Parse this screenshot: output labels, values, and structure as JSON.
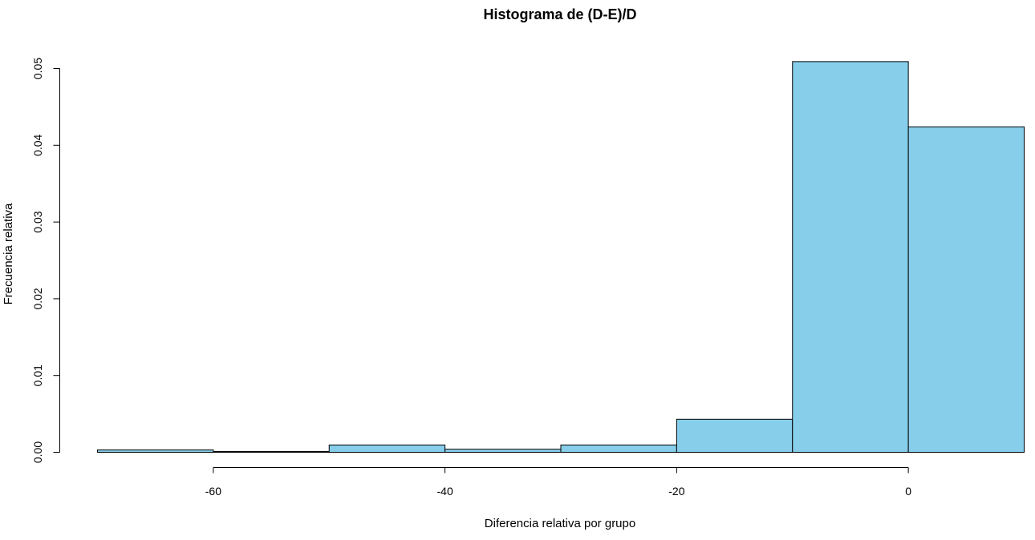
{
  "chart_data": {
    "type": "bar",
    "title": "Histograma de (D-E)/D",
    "xlabel": "Diferencia relativa por grupo",
    "ylabel": "Frecuencia relativa",
    "bins": [
      {
        "x0": -70,
        "x1": -60,
        "density": 0.0003
      },
      {
        "x0": -60,
        "x1": -50,
        "density": 0.0001
      },
      {
        "x0": -50,
        "x1": -40,
        "density": 0.00095
      },
      {
        "x0": -40,
        "x1": -30,
        "density": 0.0004
      },
      {
        "x0": -30,
        "x1": -20,
        "density": 0.00095
      },
      {
        "x0": -20,
        "x1": -10,
        "density": 0.0043
      },
      {
        "x0": -10,
        "x1": 0,
        "density": 0.0509
      },
      {
        "x0": 0,
        "x1": 10,
        "density": 0.0424
      }
    ],
    "xticks": [
      -60,
      -40,
      -20,
      0
    ],
    "xtick_labels": [
      "-60",
      "-40",
      "-20",
      "0"
    ],
    "yticks": [
      0,
      0.01,
      0.02,
      0.03,
      0.04,
      0.05
    ],
    "ytick_labels": [
      "0.00",
      "0.01",
      "0.02",
      "0.03",
      "0.04",
      "0.05"
    ],
    "xlim": [
      -70,
      10
    ],
    "ylim": [
      0,
      0.05
    ],
    "grid": false,
    "bar_color": "#87CEEB",
    "edge_color": "#000000"
  }
}
